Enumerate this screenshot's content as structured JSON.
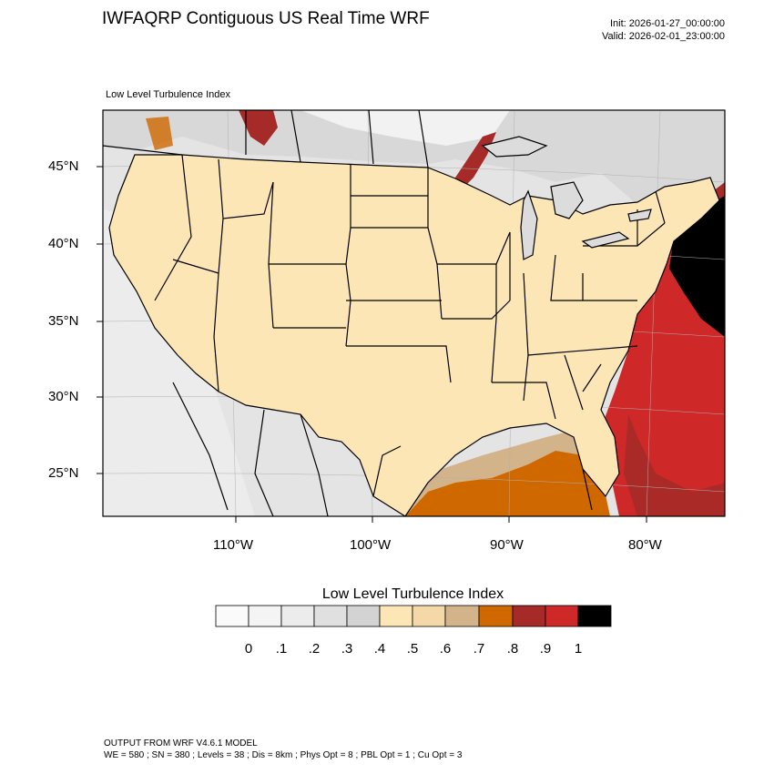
{
  "header": {
    "title": "IWFAQRP Contiguous US Real Time WRF",
    "init": "Init: 2026-01-27_00:00:00",
    "valid": "Valid: 2026-02-01_23:00:00",
    "field_label": "Low Level Turbulence Index"
  },
  "map": {
    "lat_labels": [
      "45°N",
      "40°N",
      "35°N",
      "30°N",
      "25°N"
    ],
    "lon_labels": [
      "110°W",
      "100°W",
      "90°W",
      "80°W"
    ]
  },
  "colorbar": {
    "title": "Low Level Turbulence Index",
    "ticks": [
      "0",
      ".1",
      ".2",
      ".3",
      ".4",
      ".5",
      ".6",
      ".7",
      ".8",
      ".9",
      "1"
    ],
    "colors": [
      "#fafafa",
      "#f4f4f4",
      "#ececec",
      "#e0e0e0",
      "#d3d3d3",
      "#fde6b6",
      "#f4d8a8",
      "#d2b38a",
      "#d06800",
      "#a62a28",
      "#ce2828",
      "#000000"
    ]
  },
  "footer": {
    "line1": "OUTPUT FROM WRF V4.6.1 MODEL",
    "line2": "WE = 580 ; SN = 380 ; Levels = 38 ; Dis = 8km ; Phys Opt = 8 ; PBL Opt = 1 ; Cu Opt = 3"
  }
}
